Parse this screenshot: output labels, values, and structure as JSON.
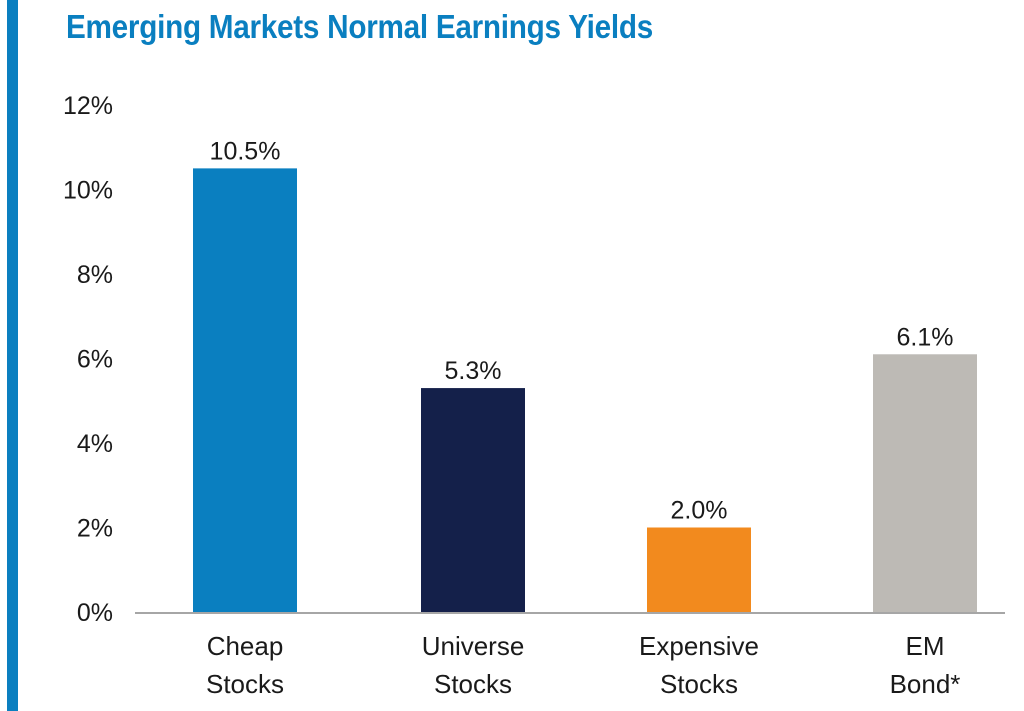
{
  "title": "Emerging Markets Normal Earnings Yields",
  "accent_color": "#0a7fc0",
  "chart_data": {
    "type": "bar",
    "title": "Emerging Markets Normal Earnings Yields",
    "categories": [
      [
        "Cheap",
        "Stocks"
      ],
      [
        "Universe",
        "Stocks"
      ],
      [
        "Expensive",
        "Stocks"
      ],
      [
        "EM",
        "Bond*"
      ]
    ],
    "values": [
      10.5,
      5.3,
      2.0,
      6.1
    ],
    "data_labels": [
      "10.5%",
      "5.3%",
      "2.0%",
      "6.1%"
    ],
    "colors": [
      "#0a7fc0",
      "#14204a",
      "#f28a1e",
      "#bdbab5"
    ],
    "ylim": [
      0,
      12
    ],
    "yticks": [
      0,
      2,
      4,
      6,
      8,
      10,
      12
    ],
    "ytick_labels": [
      "0%",
      "2%",
      "4%",
      "6%",
      "8%",
      "10%",
      "12%"
    ],
    "xlabel": "",
    "ylabel": "",
    "grid": false,
    "legend": "none"
  }
}
